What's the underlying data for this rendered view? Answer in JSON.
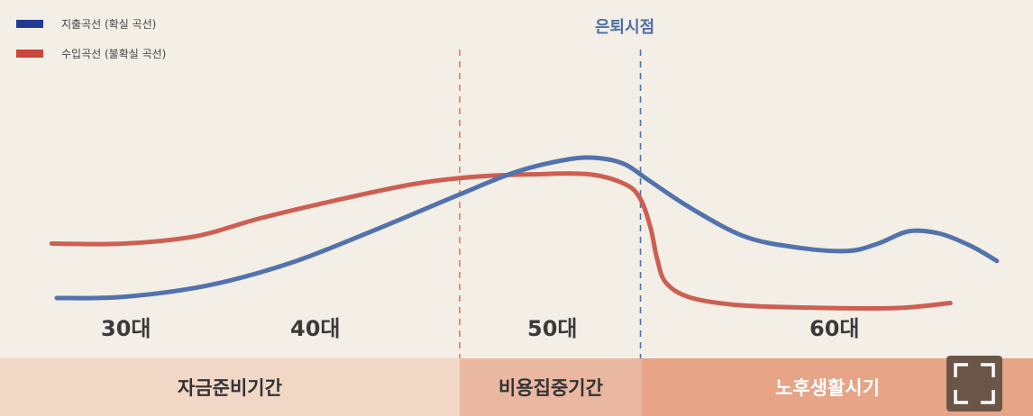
{
  "legend": {
    "items": [
      {
        "label": "지출곡선 (확실 곡선)",
        "color": "#1f3c95"
      },
      {
        "label": "수입곡선 (불확실 곡선)",
        "color": "#c8463a"
      }
    ]
  },
  "retire_label": "은퇴시점",
  "ages": [
    "30대",
    "40대",
    "50대",
    "60대"
  ],
  "periods": [
    "자금준비기간",
    "비용집중기간",
    "노후생활시기"
  ],
  "fullscreen_icon": "fullscreen-icon",
  "chart_data": {
    "type": "line",
    "xlim": [
      0,
      100
    ],
    "ylim": [
      0,
      100
    ],
    "grid": false,
    "legend_position": "top-left",
    "markers": [
      {
        "x": 44.5,
        "color": "#e07a56"
      },
      {
        "label": "은퇴시점",
        "x": 62,
        "color": "#4d6fa8"
      }
    ],
    "series": [
      {
        "name": "지출곡선 (확실 곡선)",
        "color": "#5272ad",
        "x": [
          5.5,
          12,
          20,
          28,
          36,
          44,
          50,
          55,
          58,
          60.5,
          63,
          67,
          72,
          77,
          82,
          85,
          88,
          91,
          94,
          96.5
        ],
        "y": [
          24,
          24.5,
          29,
          38,
          51,
          65,
          75,
          80,
          80.5,
          78,
          71,
          60,
          49,
          44.5,
          43,
          46,
          51,
          50,
          45,
          39
        ]
      },
      {
        "name": "수입곡선 (불확실 곡선)",
        "color": "#cd5f52",
        "x": [
          5,
          12,
          19,
          25,
          32,
          40,
          46,
          52,
          57,
          60.5,
          62,
          63,
          63.6,
          64.5,
          67,
          72,
          80,
          87,
          92
        ],
        "y": [
          46,
          46,
          49,
          56,
          63,
          70,
          73,
          74,
          74,
          70,
          64,
          52,
          40,
          30,
          24,
          21,
          20,
          20,
          22
        ]
      }
    ]
  }
}
